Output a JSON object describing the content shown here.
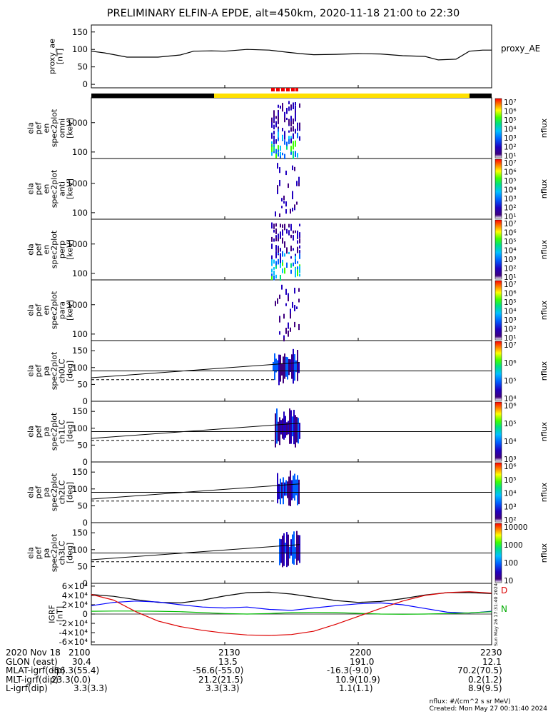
{
  "title": "PRELIMINARY ELFIN-A EPDE, alt=450km, 2020-11-18 21:00 to 22:30",
  "chart_data": [
    {
      "type": "line",
      "name": "proxy_ae",
      "ylabel": "proxy_ae",
      "yunit": "[nT]",
      "legend": "proxy_AE",
      "ylim": [
        0,
        150
      ],
      "yticks": [
        "0",
        "50",
        "100",
        "150"
      ],
      "x_minutes": [
        0,
        3,
        8,
        15,
        20,
        23,
        27,
        30,
        35,
        40,
        44,
        47,
        50,
        55,
        60,
        65,
        70,
        75,
        78,
        82,
        85,
        88,
        90
      ],
      "values": [
        95,
        90,
        78,
        78,
        84,
        95,
        96,
        95,
        100,
        98,
        92,
        88,
        85,
        86,
        88,
        87,
        82,
        80,
        70,
        72,
        95,
        98,
        98
      ]
    },
    {
      "type": "heatmap",
      "ylabel": [
        "ela",
        "pef",
        "en",
        "spec2plot",
        "omni",
        "[keV]"
      ],
      "yticks": [
        "100",
        "1000"
      ],
      "colorbar": {
        "label": "nflux",
        "ticks": [
          "10¹",
          "10²",
          "10³",
          "10⁴",
          "10⁵",
          "10⁶",
          "10⁷"
        ]
      }
    },
    {
      "type": "heatmap",
      "ylabel": [
        "ela",
        "pef",
        "en",
        "spec2plot",
        "anti",
        "[keV]"
      ],
      "yticks": [
        "100",
        "1000"
      ],
      "colorbar": {
        "label": "nflux",
        "ticks": [
          "10¹",
          "10²",
          "10³",
          "10⁴",
          "10⁵",
          "10⁶",
          "10⁷"
        ]
      }
    },
    {
      "type": "heatmap",
      "ylabel": [
        "ela",
        "pef",
        "en",
        "spec2plot",
        "perp",
        "[keV]"
      ],
      "yticks": [
        "100",
        "1000"
      ],
      "colorbar": {
        "label": "nflux",
        "ticks": [
          "10¹",
          "10²",
          "10³",
          "10⁴",
          "10⁵",
          "10⁶",
          "10⁷"
        ]
      }
    },
    {
      "type": "heatmap",
      "ylabel": [
        "ela",
        "pef",
        "en",
        "spec2plot",
        "para",
        "[keV]"
      ],
      "yticks": [
        "100",
        "1000"
      ],
      "colorbar": {
        "label": "nflux",
        "ticks": [
          "10¹",
          "10²",
          "10³",
          "10⁴",
          "10⁵",
          "10⁶",
          "10⁷"
        ]
      }
    },
    {
      "type": "heatmap",
      "ylabel": [
        "ela",
        "pef",
        "pa",
        "spec2plot",
        "ch0LC",
        "[deg]"
      ],
      "ylim": [
        0,
        180
      ],
      "yticks": [
        "0",
        "50",
        "100",
        "150"
      ],
      "colorbar": {
        "label": "nflux",
        "ticks": [
          "10⁴",
          "10⁵",
          "10⁶",
          "10⁷"
        ]
      }
    },
    {
      "type": "heatmap",
      "ylabel": [
        "ela",
        "pef",
        "pa",
        "spec2plot",
        "ch1LC",
        "[deg]"
      ],
      "ylim": [
        0,
        180
      ],
      "yticks": [
        "0",
        "50",
        "100",
        "150"
      ],
      "colorbar": {
        "label": "nflux",
        "ticks": [
          "10³",
          "10⁴",
          "10⁵",
          "10⁶"
        ]
      }
    },
    {
      "type": "heatmap",
      "ylabel": [
        "ela",
        "pef",
        "pa",
        "spec2plot",
        "ch2LC",
        "[deg]"
      ],
      "ylim": [
        0,
        180
      ],
      "yticks": [
        "0",
        "50",
        "100",
        "150"
      ],
      "colorbar": {
        "label": "nflux",
        "ticks": [
          "10²",
          "10³",
          "10⁴",
          "10⁵",
          "10⁶"
        ]
      }
    },
    {
      "type": "heatmap",
      "ylabel": [
        "ela",
        "pef",
        "pa",
        "spec2plot",
        "ch3LC",
        "[deg]"
      ],
      "ylim": [
        0,
        180
      ],
      "yticks": [
        "0",
        "50",
        "100",
        "150"
      ],
      "colorbar": {
        "label": "nflux",
        "ticks": [
          "10",
          "100",
          "1000",
          "10000"
        ]
      }
    },
    {
      "type": "line",
      "name": "IGRF",
      "ylabel": "IGRF",
      "yunit": "[nT]",
      "ylim": [
        -60000,
        60000
      ],
      "yticks": [
        "-6×10⁴",
        "-4×10⁴",
        "-2×10⁴",
        "0",
        "2×10⁴",
        "4×10⁴",
        "6×10⁴"
      ],
      "legend": [
        "D",
        "N"
      ],
      "x_minutes": [
        0,
        5,
        10,
        15,
        20,
        25,
        30,
        35,
        40,
        45,
        50,
        55,
        60,
        65,
        70,
        75,
        80,
        85,
        90
      ],
      "series": [
        {
          "name": "",
          "color": "#000000",
          "values": [
            42000,
            38000,
            31000,
            25000,
            24000,
            30000,
            39000,
            46000,
            47000,
            43000,
            36000,
            29000,
            25000,
            27000,
            33000,
            41000,
            46000,
            46000,
            44000
          ]
        },
        {
          "name": "",
          "color": "#0000ff",
          "values": [
            18000,
            25000,
            28000,
            26000,
            20000,
            15000,
            13000,
            15000,
            10000,
            8000,
            13000,
            18000,
            22000,
            24000,
            20000,
            12000,
            4000,
            2000,
            6000
          ]
        },
        {
          "name": "",
          "color": "#00bb00",
          "values": [
            6000,
            6500,
            6500,
            6000,
            5000,
            3000,
            1000,
            0,
            1000,
            3000,
            3500,
            3000,
            1500,
            0,
            -500,
            0,
            1000,
            2500,
            5000
          ]
        },
        {
          "name": "",
          "color": "#dd0000",
          "values": [
            42000,
            30000,
            5000,
            -15000,
            -27000,
            -35000,
            -41000,
            -45000,
            -46000,
            -44000,
            -37000,
            -22000,
            -5000,
            12000,
            28000,
            40000,
            46000,
            48000,
            45000
          ]
        }
      ]
    }
  ],
  "xticks": [
    "2100",
    "2130",
    "2200",
    "2230"
  ],
  "info": {
    "rows": [
      {
        "label": "2020 Nov 18",
        "values": [
          "2100",
          "2130",
          "2200",
          "2230"
        ]
      },
      {
        "label": "GLON (east)",
        "values": [
          "30.4",
          "13.5",
          "191.0",
          "12.1"
        ]
      },
      {
        "label": "MLAT-igrf(dip)",
        "values": [
          "-56.3(55.4)",
          "-56.6(-55.0)",
          "-16.3(-9.0)",
          "70.2(70.5)"
        ]
      },
      {
        "label": "MLT-igrf(dip)",
        "values": [
          "23.3(0.0)",
          "21.2(21.5)",
          "10.9(10.9)",
          "0.2(1.2)"
        ]
      },
      {
        "label": "L-igrf(dip)",
        "values": [
          "3.3(3.3)",
          "3.3(3.3)",
          "1.1(1.1)",
          "8.9(9.5)"
        ]
      }
    ]
  },
  "footer": {
    "units": "nflux: #/(cm^2 s sr MeV)",
    "created": "Created: Mon May 27 00:31:40 2024",
    "side_stamp": "Sun May 26 17:31:40 2024"
  }
}
